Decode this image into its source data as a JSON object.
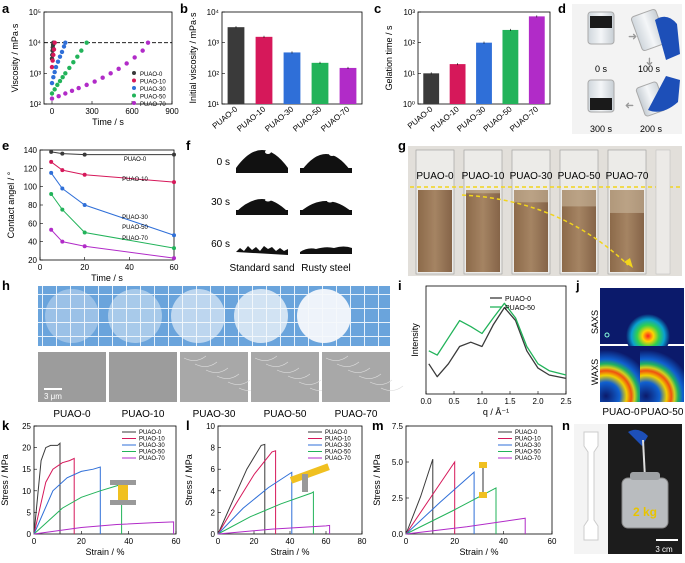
{
  "colors": {
    "PUAO-0": "#3a3a3a",
    "PUAO-10": "#d6185a",
    "PUAO-30": "#2f6fd8",
    "PUAO-50": "#22b35a",
    "PUAO-70": "#b12bc8"
  },
  "panels": {
    "a": {
      "letter": "a",
      "ylabel": "Viscosity / mPa·s",
      "xlabel": "Time / s",
      "xticks": [
        "0",
        "300",
        "600",
        "900"
      ],
      "yticks": [
        "10²",
        "10³",
        "10⁴",
        "10⁵"
      ]
    },
    "b": {
      "letter": "b",
      "ylabel": "Initial viscosity / mPa·s",
      "yticks": [
        "10¹",
        "10²",
        "10³",
        "10⁴"
      ]
    },
    "c": {
      "letter": "c",
      "ylabel": "Gelation time / s",
      "yticks": [
        "10⁰",
        "10¹",
        "10²",
        "10³"
      ]
    },
    "d": {
      "letter": "d",
      "times": [
        "0 s",
        "100 s",
        "200 s",
        "300 s"
      ]
    },
    "e": {
      "letter": "e",
      "ylabel": "Contact angel / °",
      "xlabel": "Time / s",
      "xticks": [
        "0",
        "20",
        "40",
        "60"
      ],
      "yticks": [
        "20",
        "40",
        "60",
        "80",
        "100",
        "120",
        "140"
      ]
    },
    "f": {
      "letter": "f",
      "times": [
        "0 s",
        "30 s",
        "60 s"
      ],
      "substrates": [
        "Standard sand",
        "Rusty steel"
      ]
    },
    "g": {
      "letter": "g",
      "samples": [
        "PUAO-0",
        "PUAO-10",
        "PUAO-30",
        "PUAO-50",
        "PUAO-70"
      ]
    },
    "h": {
      "letter": "h",
      "scale": "3 μm",
      "samples": [
        "PUAO-0",
        "PUAO-10",
        "PUAO-30",
        "PUAO-50",
        "PUAO-70"
      ]
    },
    "i": {
      "letter": "i",
      "ylabel": "Intensity",
      "xlabel": "q / Å⁻¹",
      "xticks": [
        "0.0",
        "0.5",
        "1.0",
        "1.5",
        "2.0",
        "2.5"
      ],
      "legend": [
        "PUAO-0",
        "PUAO-50"
      ]
    },
    "j": {
      "letter": "j",
      "rows": [
        "SAXS",
        "WAXS"
      ],
      "cols": [
        "PUAO-0",
        "PUAO-50"
      ]
    },
    "k": {
      "letter": "k",
      "ylabel": "Stress / MPa",
      "xlabel": "Strain / %",
      "xticks": [
        "0",
        "20",
        "40",
        "60"
      ],
      "yticks": [
        "0",
        "5",
        "10",
        "15",
        "20",
        "25"
      ]
    },
    "l": {
      "letter": "l",
      "ylabel": "Stress / MPa",
      "xlabel": "Strain / %",
      "xticks": [
        "0",
        "20",
        "40",
        "60",
        "80"
      ],
      "yticks": [
        "0",
        "2",
        "4",
        "6",
        "8",
        "10"
      ]
    },
    "m": {
      "letter": "m",
      "ylabel": "Stress / MPa",
      "xlabel": "Strain / %",
      "xticks": [
        "0",
        "20",
        "40",
        "60"
      ],
      "yticks": [
        "0.0",
        "2.5",
        "5.0",
        "7.5"
      ]
    },
    "n": {
      "letter": "n",
      "weight": "2 kg",
      "scale": "3 cm"
    }
  },
  "chart_data": [
    {
      "id": "a",
      "type": "scatter",
      "title": "",
      "xlabel": "Time / s",
      "ylabel": "Viscosity / mPa·s",
      "xlim": [
        -60,
        900
      ],
      "ylim_log10": [
        2,
        5
      ],
      "threshold": 10000,
      "series": [
        {
          "name": "PUAO-0",
          "x": [
            0,
            2,
            4,
            6,
            8,
            10
          ],
          "y": [
            3000,
            4000,
            5500,
            7000,
            8500,
            10000
          ]
        },
        {
          "name": "PUAO-10",
          "x": [
            0,
            5,
            10,
            15,
            20
          ],
          "y": [
            1600,
            2600,
            4000,
            6000,
            10000
          ]
        },
        {
          "name": "PUAO-30",
          "x": [
            0,
            10,
            20,
            30,
            45,
            60,
            75,
            90,
            100
          ],
          "y": [
            480,
            750,
            1100,
            1600,
            2400,
            3500,
            5000,
            7500,
            10000
          ]
        },
        {
          "name": "PUAO-50",
          "x": [
            0,
            20,
            40,
            60,
            80,
            100,
            130,
            160,
            190,
            220,
            260
          ],
          "y": [
            220,
            300,
            420,
            560,
            750,
            1000,
            1500,
            2300,
            3500,
            5500,
            10000
          ]
        },
        {
          "name": "PUAO-70",
          "x": [
            0,
            50,
            100,
            150,
            200,
            260,
            320,
            380,
            440,
            500,
            560,
            620,
            680,
            720
          ],
          "y": [
            150,
            180,
            220,
            270,
            330,
            420,
            540,
            720,
            1000,
            1400,
            2100,
            3300,
            5500,
            10000
          ]
        }
      ]
    },
    {
      "id": "b",
      "type": "bar",
      "ylabel": "Initial viscosity / mPa·s",
      "categories": [
        "PUAO-0",
        "PUAO-10",
        "PUAO-30",
        "PUAO-50",
        "PUAO-70"
      ],
      "values": [
        3200,
        1550,
        480,
        220,
        150
      ],
      "ylim_log10": [
        1,
        4
      ]
    },
    {
      "id": "c",
      "type": "bar",
      "ylabel": "Gelation time / s",
      "categories": [
        "PUAO-0",
        "PUAO-10",
        "PUAO-30",
        "PUAO-50",
        "PUAO-70"
      ],
      "values": [
        10,
        20,
        100,
        260,
        720
      ],
      "ylim_log10": [
        0,
        3
      ]
    },
    {
      "id": "e",
      "type": "line",
      "xlabel": "Time / s",
      "ylabel": "Contact angel / °",
      "xlim": [
        0,
        60
      ],
      "ylim": [
        20,
        140
      ],
      "x": [
        5,
        10,
        20,
        60
      ],
      "series": [
        {
          "name": "PUAO-0",
          "values": [
            138,
            136,
            135,
            135
          ]
        },
        {
          "name": "PUAO-10",
          "values": [
            127,
            118,
            113,
            105
          ]
        },
        {
          "name": "PUAO-30",
          "values": [
            115,
            98,
            80,
            47
          ]
        },
        {
          "name": "PUAO-50",
          "values": [
            92,
            75,
            50,
            33
          ]
        },
        {
          "name": "PUAO-70",
          "values": [
            53,
            40,
            35,
            22
          ]
        }
      ]
    },
    {
      "id": "i",
      "type": "line",
      "xlabel": "q / Å⁻¹",
      "ylabel": "Intensity",
      "xlim": [
        0,
        2.5
      ],
      "series": [
        {
          "name": "PUAO-0",
          "x": [
            0.05,
            0.2,
            0.4,
            0.6,
            0.8,
            1.0,
            1.2,
            1.4,
            1.6,
            1.8,
            2.0,
            2.2,
            2.5
          ],
          "y": [
            0.35,
            0.2,
            0.35,
            0.55,
            0.6,
            0.55,
            0.8,
            1.0,
            0.85,
            0.5,
            0.3,
            0.22,
            0.18
          ]
        },
        {
          "name": "PUAO-50",
          "x": [
            0.05,
            0.2,
            0.4,
            0.6,
            0.8,
            1.0,
            1.2,
            1.4,
            1.6,
            1.8,
            2.0,
            2.2,
            2.5
          ],
          "y": [
            0.5,
            0.45,
            0.65,
            0.85,
            0.78,
            0.7,
            0.88,
            1.05,
            0.88,
            0.55,
            0.35,
            0.27,
            0.22
          ]
        }
      ]
    },
    {
      "id": "k",
      "type": "line",
      "xlabel": "Strain / %",
      "ylabel": "Stress / MPa",
      "xlim": [
        0,
        60
      ],
      "ylim": [
        0,
        25
      ],
      "series": [
        {
          "name": "PUAO-0",
          "x": [
            0,
            3,
            5,
            7,
            10,
            11,
            11
          ],
          "y": [
            0,
            17,
            20,
            20.5,
            20.5,
            21,
            0
          ]
        },
        {
          "name": "PUAO-10",
          "x": [
            0,
            5,
            8,
            12,
            15,
            17,
            17
          ],
          "y": [
            0,
            12,
            15,
            16.5,
            17,
            17.5,
            0
          ]
        },
        {
          "name": "PUAO-30",
          "x": [
            0,
            8,
            14,
            20,
            25,
            28,
            28
          ],
          "y": [
            0,
            10,
            13,
            14.5,
            15,
            15.5,
            0
          ]
        },
        {
          "name": "PUAO-50",
          "x": [
            0,
            12,
            20,
            28,
            34,
            37,
            37
          ],
          "y": [
            0,
            6,
            8.5,
            10,
            11,
            11.5,
            0
          ]
        },
        {
          "name": "PUAO-70",
          "x": [
            0,
            20,
            35,
            50,
            59,
            59
          ],
          "y": [
            0,
            1.5,
            2.2,
            2.6,
            2.8,
            0
          ]
        }
      ]
    },
    {
      "id": "l",
      "type": "line",
      "xlabel": "Strain / %",
      "ylabel": "Stress / MPa",
      "xlim": [
        0,
        80
      ],
      "ylim": [
        0,
        10
      ],
      "series": [
        {
          "name": "PUAO-0",
          "x": [
            0,
            8,
            16,
            24,
            26,
            26
          ],
          "y": [
            0,
            3,
            6,
            8.2,
            8.3,
            0
          ]
        },
        {
          "name": "PUAO-10",
          "x": [
            0,
            10,
            20,
            30,
            32,
            32
          ],
          "y": [
            0,
            2.8,
            5.5,
            7.6,
            7.7,
            0
          ]
        },
        {
          "name": "PUAO-30",
          "x": [
            0,
            14,
            28,
            40,
            41,
            41
          ],
          "y": [
            0,
            2.4,
            4.3,
            5.6,
            5.7,
            0
          ]
        },
        {
          "name": "PUAO-50",
          "x": [
            0,
            18,
            35,
            52,
            53,
            53
          ],
          "y": [
            0,
            1.6,
            2.8,
            3.8,
            3.9,
            0
          ]
        },
        {
          "name": "PUAO-70",
          "x": [
            0,
            30,
            60,
            62,
            62
          ],
          "y": [
            0,
            0.45,
            0.75,
            0.8,
            0
          ]
        }
      ]
    },
    {
      "id": "m",
      "type": "line",
      "xlabel": "Strain / %",
      "ylabel": "Stress / MPa",
      "xlim": [
        0,
        60
      ],
      "ylim": [
        0,
        7.5
      ],
      "series": [
        {
          "name": "PUAO-0",
          "x": [
            0,
            6,
            11,
            11
          ],
          "y": [
            0,
            2.6,
            5.2,
            0
          ]
        },
        {
          "name": "PUAO-10",
          "x": [
            0,
            10,
            20,
            20
          ],
          "y": [
            0,
            2.5,
            5.0,
            0
          ]
        },
        {
          "name": "PUAO-30",
          "x": [
            0,
            14,
            28,
            28
          ],
          "y": [
            0,
            2.2,
            4.3,
            0
          ]
        },
        {
          "name": "PUAO-50",
          "x": [
            0,
            19,
            37,
            37
          ],
          "y": [
            0,
            1.6,
            3.2,
            0
          ]
        },
        {
          "name": "PUAO-70",
          "x": [
            0,
            25,
            49,
            49
          ],
          "y": [
            0,
            0.5,
            1.1,
            0
          ]
        }
      ]
    }
  ]
}
